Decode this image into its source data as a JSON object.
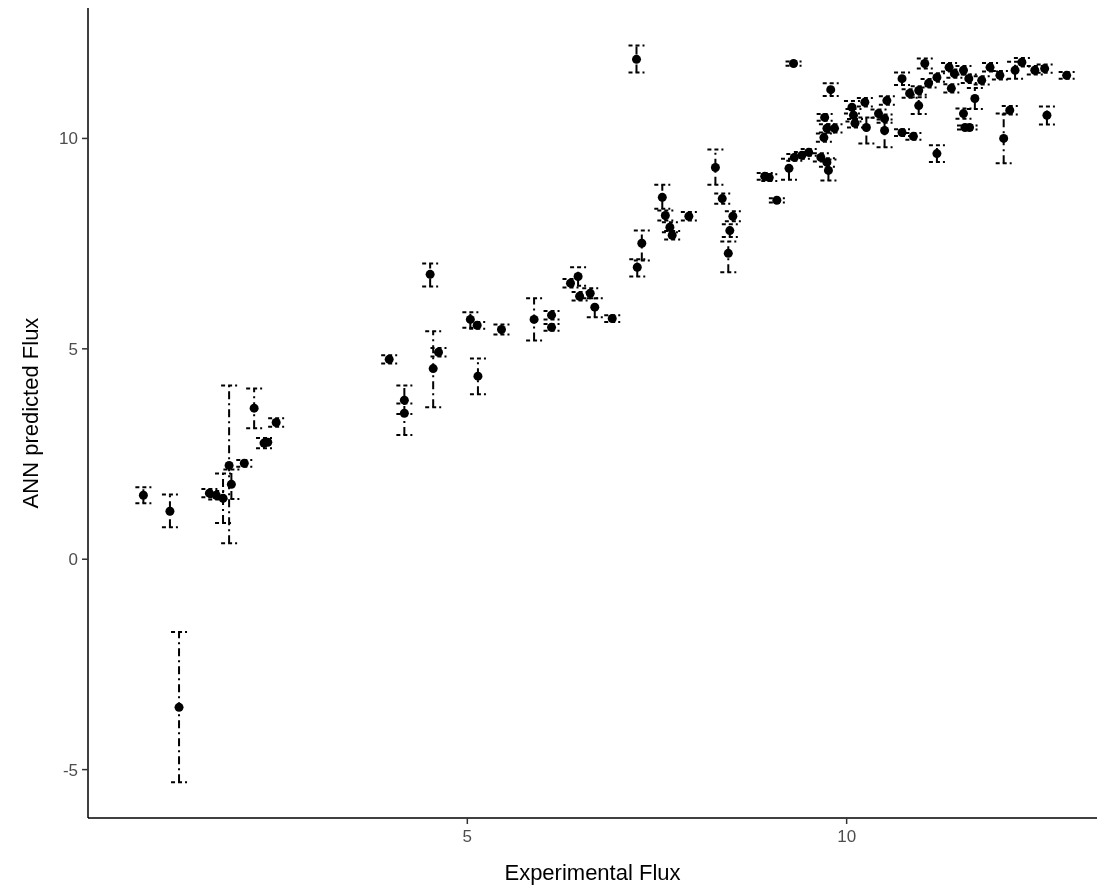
{
  "chart_data": {
    "type": "scatter",
    "xlabel": "Experimental Flux",
    "ylabel": "ANN predicted Flux",
    "xlim": [
      0,
      13.3
    ],
    "ylim": [
      -6.15,
      13.1
    ],
    "xticks": [
      5,
      10
    ],
    "yticks": [
      -5,
      0,
      5,
      10
    ],
    "grid": false,
    "marker": "circle",
    "series": [
      {
        "color": "#000000",
        "x": [
          0.73,
          1.08,
          1.2,
          1.6,
          1.69,
          1.78,
          1.86,
          1.89,
          2.06,
          2.19,
          2.32,
          2.37,
          2.48,
          3.97,
          4.17,
          4.17,
          4.51,
          4.55,
          4.62,
          5.04,
          5.13,
          5.14,
          5.45,
          5.88,
          6.11,
          6.11,
          6.36,
          6.46,
          6.48,
          6.62,
          6.68,
          6.91,
          7.23,
          7.24,
          7.3,
          7.57,
          7.61,
          7.67,
          7.7,
          7.92,
          8.27,
          8.36,
          8.44,
          8.46,
          8.5,
          8.92,
          8.98,
          9.08,
          9.24,
          9.3,
          9.31,
          9.41,
          9.5,
          9.66,
          9.7,
          9.71,
          9.74,
          9.74,
          9.76,
          9.79,
          9.84,
          10.07,
          10.09,
          10.11,
          10.24,
          10.26,
          10.42,
          10.5,
          10.5,
          10.53,
          10.73,
          10.73,
          10.83,
          10.88,
          10.95,
          10.95,
          11.03,
          11.08,
          11.19,
          11.19,
          11.35,
          11.38,
          11.42,
          11.54,
          11.54,
          11.56,
          11.61,
          11.62,
          11.69,
          11.78,
          11.89,
          12.02,
          12.07,
          12.15,
          12.22,
          12.31,
          12.48,
          12.61,
          12.64,
          12.9
        ],
        "values": [
          1.52,
          1.14,
          -3.52,
          1.57,
          1.52,
          1.45,
          2.23,
          1.78,
          2.28,
          3.59,
          2.76,
          2.78,
          3.25,
          4.75,
          3.78,
          3.47,
          6.77,
          4.53,
          4.92,
          5.7,
          5.56,
          4.35,
          5.46,
          5.7,
          5.8,
          5.51,
          6.56,
          6.72,
          6.25,
          6.32,
          5.99,
          5.72,
          11.88,
          6.94,
          7.51,
          8.6,
          8.17,
          7.89,
          7.7,
          8.15,
          9.31,
          8.57,
          7.27,
          7.81,
          8.15,
          9.1,
          9.07,
          8.53,
          9.29,
          11.78,
          9.55,
          9.6,
          9.67,
          9.55,
          10.02,
          10.5,
          10.24,
          9.43,
          9.24,
          11.16,
          10.24,
          10.74,
          10.55,
          10.36,
          10.86,
          10.26,
          10.59,
          10.47,
          10.19,
          10.9,
          10.14,
          11.42,
          11.07,
          10.05,
          11.14,
          10.78,
          11.78,
          11.31,
          11.45,
          9.64,
          11.69,
          11.19,
          11.54,
          11.62,
          10.59,
          10.26,
          11.42,
          10.26,
          10.95,
          11.38,
          11.69,
          11.5,
          10.0,
          10.67,
          11.62,
          11.81,
          11.62,
          11.66,
          10.55,
          11.5
        ],
        "errors": [
          [
            1.33,
            1.71
          ],
          [
            0.76,
            1.54
          ],
          [
            -5.3,
            -1.73
          ],
          0.1,
          0.1,
          [
            0.86,
            2.04
          ],
          [
            0.38,
            4.13
          ],
          0.35,
          0.08,
          [
            3.11,
            4.06
          ],
          0.12,
          null,
          0.1,
          0.1,
          [
            3.45,
            4.13
          ],
          [
            2.95,
            3.7
          ],
          [
            6.48,
            7.03
          ],
          [
            3.61,
            5.42
          ],
          0.1,
          [
            5.5,
            5.87
          ],
          0.08,
          [
            3.92,
            4.77
          ],
          0.12,
          [
            5.2,
            6.2
          ],
          0.1,
          0.08,
          0.1,
          [
            6.5,
            6.94
          ],
          0.1,
          0.12,
          [
            5.75,
            6.2
          ],
          0.08,
          [
            11.57,
            12.21
          ],
          [
            6.72,
            7.13
          ],
          [
            7.1,
            7.81
          ],
          [
            8.33,
            8.9
          ],
          0.12,
          0.12,
          0.1,
          0.1,
          [
            8.9,
            9.74
          ],
          0.12,
          [
            6.82,
            7.55
          ],
          0.15,
          0.12,
          0.08,
          0.08,
          0.05,
          [
            9.02,
            9.52
          ],
          0.05,
          0.08,
          0.08,
          0.08,
          0.1,
          0.1,
          0.08,
          0.1,
          0.1,
          [
            9.0,
            9.5
          ],
          0.15,
          0.1,
          0.15,
          0.15,
          0.1,
          0.1,
          [
            9.88,
            10.5
          ],
          0.1,
          0.1,
          [
            9.79,
            10.45
          ],
          0.1,
          0.08,
          0.15,
          0.1,
          0.08,
          0.1,
          0.2,
          0.12,
          0.1,
          0.1,
          0.2,
          0.1,
          0.1,
          0.1,
          0.1,
          0.12,
          0.05,
          0.1,
          0.05,
          0.25,
          0.1,
          0.1,
          0.1,
          [
            9.41,
            10.59
          ],
          0.1,
          0.2,
          0.1,
          0.1,
          0.1,
          [
            10.33,
            10.76
          ],
          0.08
        ]
      }
    ]
  }
}
